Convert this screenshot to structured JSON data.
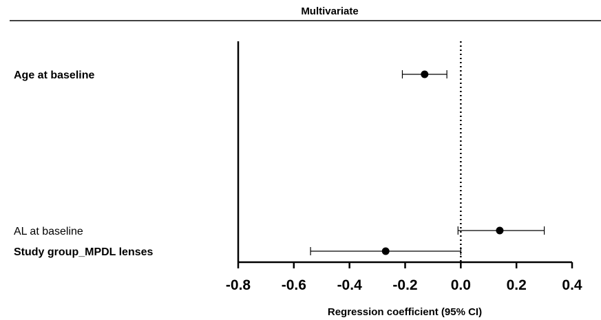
{
  "chart_data": {
    "type": "forest",
    "title": "Multivariate",
    "xlabel": "Regression coefficient (95% CI)",
    "xlim": [
      -0.8,
      0.4
    ],
    "xticks": [
      "-0.8",
      "-0.6",
      "-0.4",
      "-0.2",
      "0.0",
      "0.2",
      "0.4"
    ],
    "reference_line": 0.0,
    "reference_line_style": "dotted",
    "rows": [
      {
        "label": "Age at baseline",
        "bold": true,
        "estimate": -0.13,
        "ci_low": -0.21,
        "ci_high": -0.05
      },
      {
        "label": "AL at baseline",
        "bold": false,
        "estimate": 0.14,
        "ci_low": -0.01,
        "ci_high": 0.3
      },
      {
        "label": "Study group_MPDL lenses",
        "bold": true,
        "estimate": -0.27,
        "ci_low": -0.54,
        "ci_high": 0.0
      }
    ]
  }
}
